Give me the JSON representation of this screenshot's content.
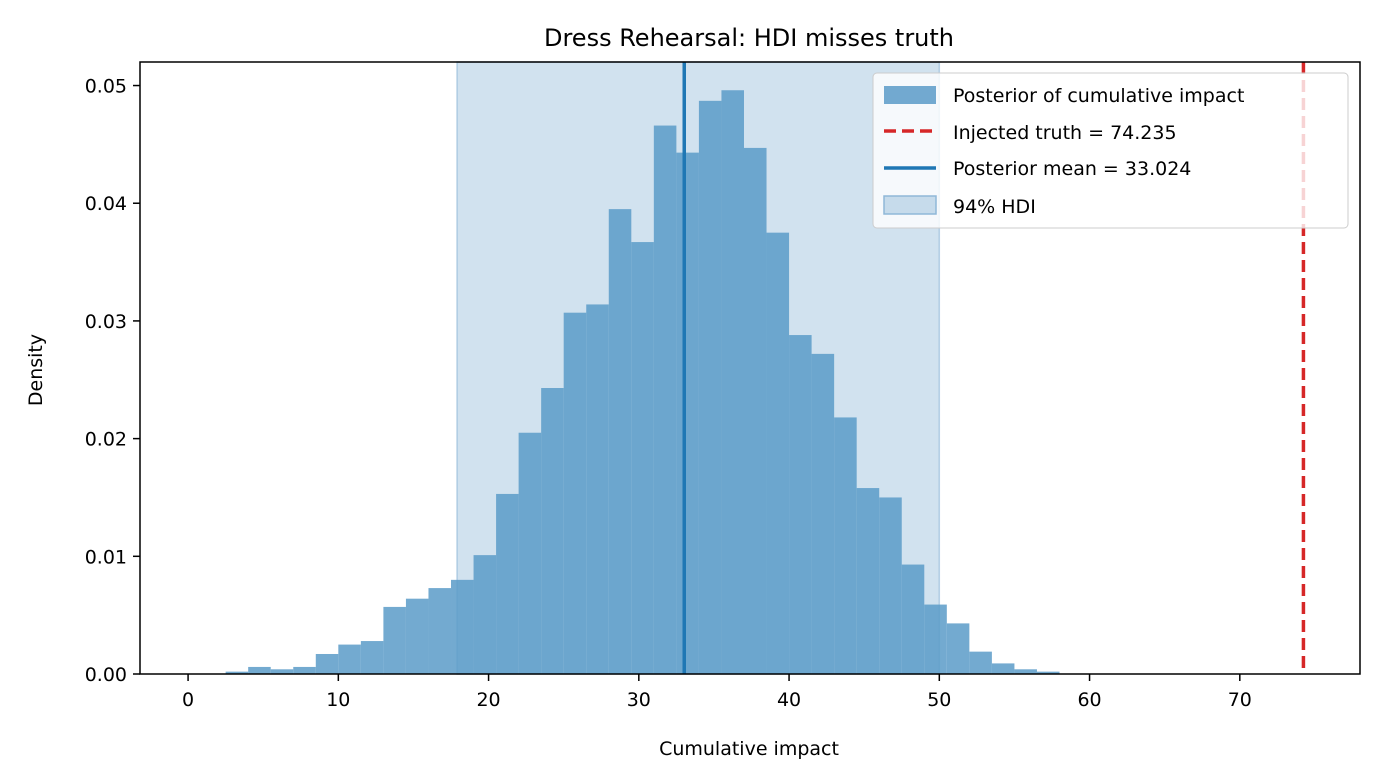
{
  "chart_data": {
    "type": "bar",
    "title": "Dress Rehearsal: HDI misses truth",
    "xlabel": "Cumulative impact",
    "ylabel": "Density",
    "xlim": [
      -3.2,
      78
    ],
    "ylim": [
      0,
      0.052
    ],
    "x_ticks": [
      0,
      10,
      20,
      30,
      40,
      50,
      60,
      70
    ],
    "y_ticks": [
      0.0,
      0.01,
      0.02,
      0.03,
      0.04,
      0.05
    ],
    "x_tick_labels": [
      "0",
      "10",
      "20",
      "30",
      "40",
      "50",
      "60",
      "70"
    ],
    "y_tick_labels": [
      "0.00",
      "0.01",
      "0.02",
      "0.03",
      "0.04",
      "0.05"
    ],
    "histogram": {
      "name": "Posterior of cumulative impact",
      "bin_start": 2.5,
      "bin_width": 1.5,
      "densities": [
        0.0002,
        0.0006,
        0.0004,
        0.0006,
        0.0017,
        0.0025,
        0.0028,
        0.0057,
        0.0064,
        0.0073,
        0.008,
        0.0101,
        0.0153,
        0.0205,
        0.0243,
        0.0307,
        0.0314,
        0.0395,
        0.0367,
        0.0466,
        0.0443,
        0.0487,
        0.0496,
        0.0447,
        0.0375,
        0.0288,
        0.0272,
        0.0218,
        0.0158,
        0.015,
        0.0093,
        0.0059,
        0.0043,
        0.0019,
        0.0009,
        0.0004,
        0.0002
      ]
    },
    "injected_truth": {
      "value": 74.235,
      "label": "Injected truth = 74.235"
    },
    "posterior_mean": {
      "value": 33.024,
      "label": "Posterior mean = 33.024"
    },
    "hdi": {
      "lower": 17.9,
      "upper": 50.0,
      "label": "94% HDI"
    },
    "legend_position": "top-right",
    "colors": {
      "histogram": "#5b9bc8",
      "hdi": "#c6dbeb",
      "mean": "#1f77b4",
      "truth": "#d62728",
      "axis": "#000000"
    }
  }
}
